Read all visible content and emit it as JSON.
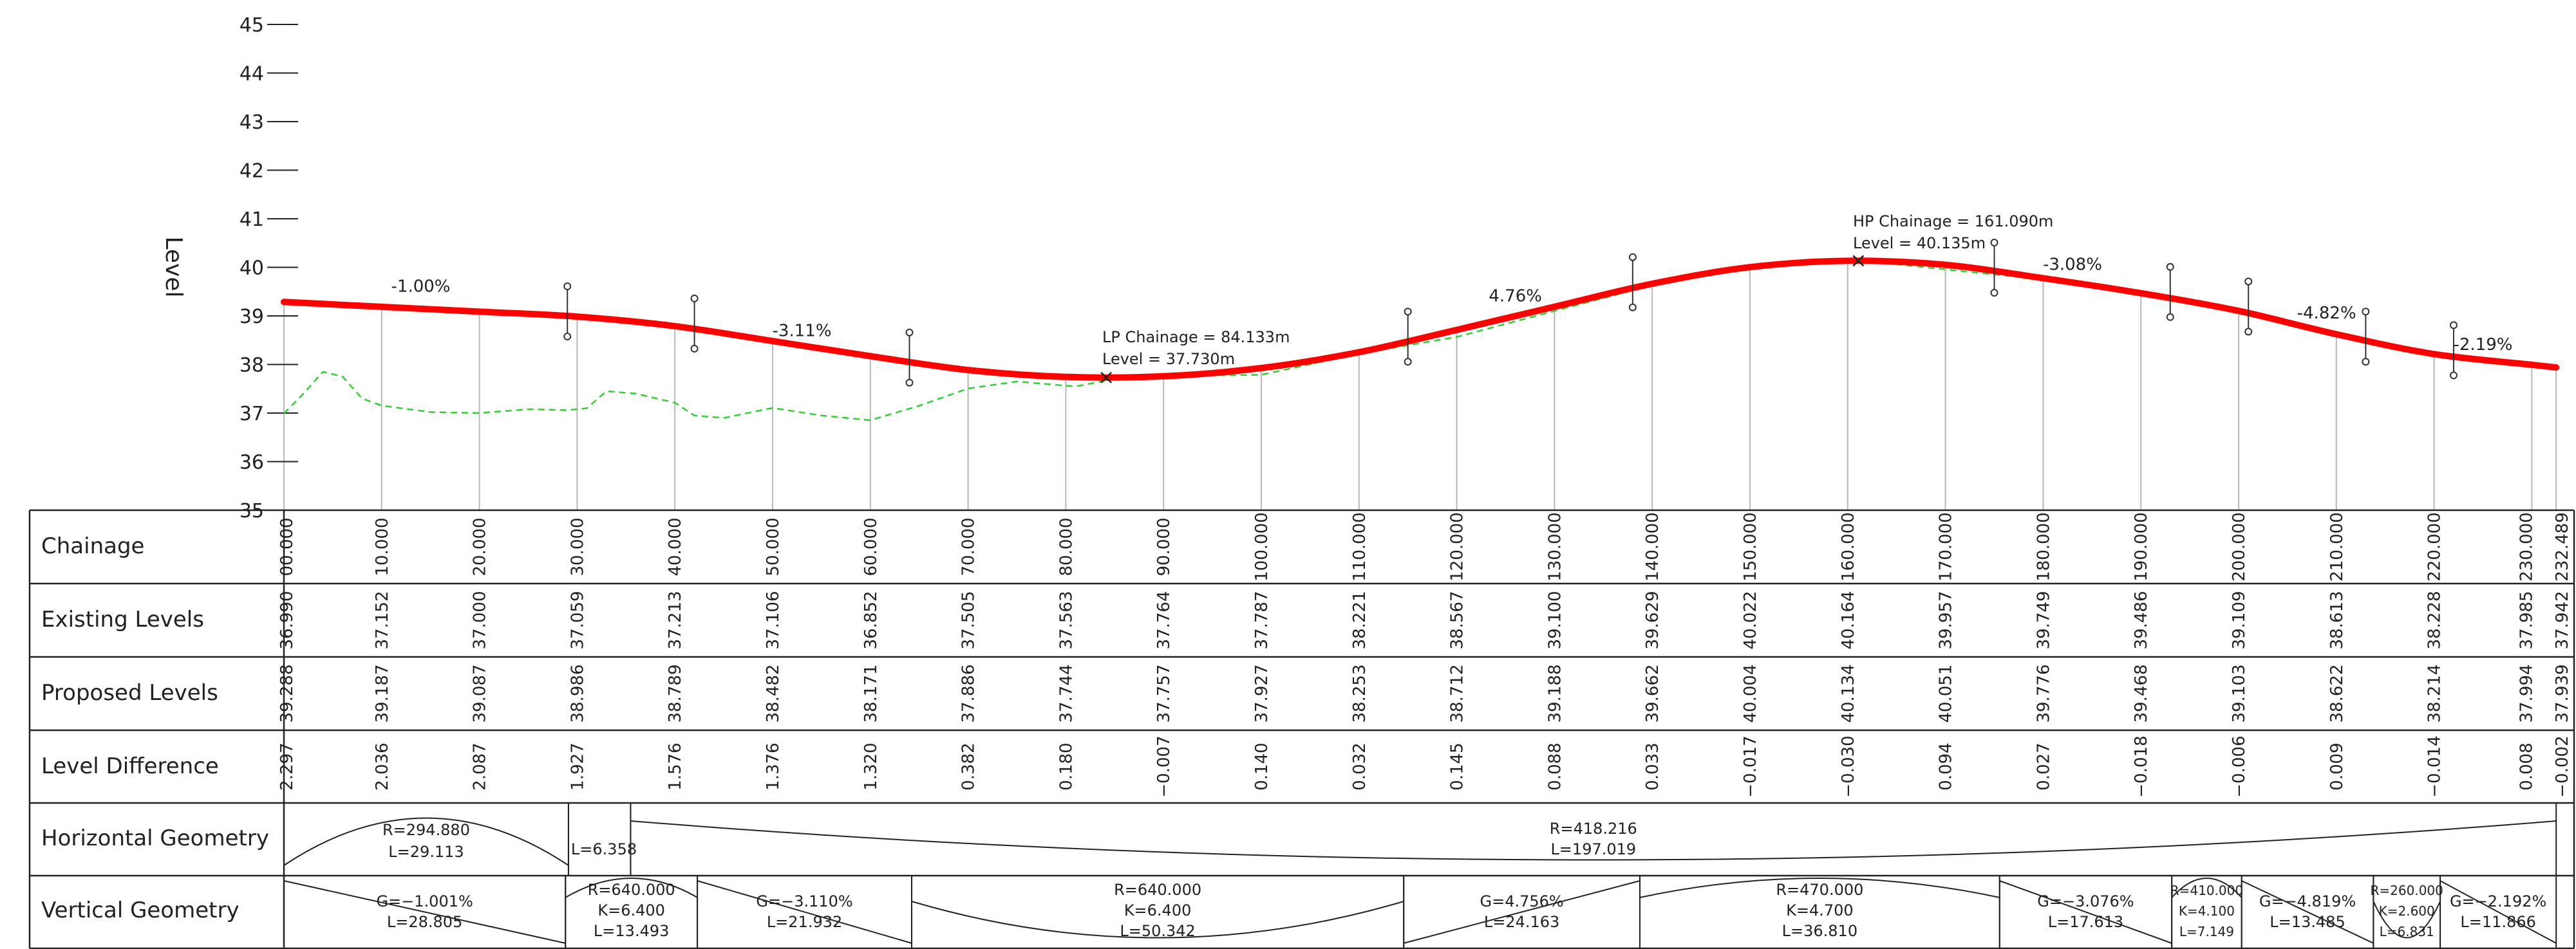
{
  "axis": {
    "label": "Level",
    "ticks": [
      "45",
      "44",
      "43",
      "42",
      "41",
      "40",
      "39",
      "38",
      "37",
      "36",
      "35"
    ],
    "ylim": [
      35,
      45
    ]
  },
  "chainage_range": [
    0,
    232.489
  ],
  "profile": {
    "proposed_color": "#ff0000",
    "existing_color": "#33cc33",
    "proposed": [
      [
        0,
        39.288
      ],
      [
        10,
        39.187
      ],
      [
        20,
        39.087
      ],
      [
        30,
        38.986
      ],
      [
        40,
        38.789
      ],
      [
        50,
        38.482
      ],
      [
        60,
        38.171
      ],
      [
        70,
        37.886
      ],
      [
        80,
        37.744
      ],
      [
        90,
        37.757
      ],
      [
        100,
        37.927
      ],
      [
        110,
        38.253
      ],
      [
        120,
        38.712
      ],
      [
        130,
        39.188
      ],
      [
        140,
        39.662
      ],
      [
        150,
        40.004
      ],
      [
        160,
        40.134
      ],
      [
        170,
        40.051
      ],
      [
        180,
        39.776
      ],
      [
        190,
        39.468
      ],
      [
        200,
        39.103
      ],
      [
        210,
        38.622
      ],
      [
        220,
        38.214
      ],
      [
        230,
        37.994
      ],
      [
        232.489,
        37.939
      ]
    ],
    "existing": [
      [
        0,
        36.99
      ],
      [
        2,
        37.4
      ],
      [
        4,
        37.85
      ],
      [
        6,
        37.75
      ],
      [
        8,
        37.3
      ],
      [
        10,
        37.152
      ],
      [
        15,
        37.02
      ],
      [
        20,
        37.0
      ],
      [
        25,
        37.08
      ],
      [
        29,
        37.06
      ],
      [
        31,
        37.1
      ],
      [
        33,
        37.45
      ],
      [
        36,
        37.4
      ],
      [
        40,
        37.213
      ],
      [
        42,
        36.95
      ],
      [
        45,
        36.9
      ],
      [
        50,
        37.106
      ],
      [
        55,
        36.95
      ],
      [
        60,
        36.852
      ],
      [
        65,
        37.15
      ],
      [
        70,
        37.505
      ],
      [
        75,
        37.65
      ],
      [
        80,
        37.563
      ],
      [
        81,
        37.55
      ],
      [
        85,
        37.7
      ],
      [
        90,
        37.764
      ],
      [
        100,
        37.787
      ],
      [
        110,
        38.221
      ],
      [
        120,
        38.567
      ],
      [
        130,
        39.1
      ],
      [
        140,
        39.629
      ],
      [
        150,
        40.022
      ],
      [
        160,
        40.164
      ],
      [
        170,
        39.957
      ],
      [
        180,
        39.749
      ],
      [
        190,
        39.486
      ],
      [
        200,
        39.109
      ],
      [
        210,
        38.613
      ],
      [
        220,
        38.228
      ],
      [
        230,
        37.985
      ],
      [
        232.489,
        37.942
      ]
    ],
    "grades": [
      {
        "chainage": 14,
        "level": 39.5,
        "text": "-1.00%"
      },
      {
        "chainage": 53,
        "level": 38.58,
        "text": "-3.11%"
      },
      {
        "chainage": 126,
        "level": 39.3,
        "text": "4.76%"
      },
      {
        "chainage": 183,
        "level": 39.95,
        "text": "-3.08%"
      },
      {
        "chainage": 209,
        "level": 38.95,
        "text": "-4.82%"
      },
      {
        "chainage": 225,
        "level": 38.3,
        "text": "-2.19%"
      }
    ],
    "ip_markers": [
      {
        "chainage": 29,
        "level": 39.0
      },
      {
        "chainage": 42,
        "level": 38.75
      },
      {
        "chainage": 64,
        "level": 38.05
      },
      {
        "chainage": 115,
        "level": 38.48
      },
      {
        "chainage": 138,
        "level": 39.6
      },
      {
        "chainage": 175,
        "level": 39.9
      },
      {
        "chainage": 193,
        "level": 39.4
      },
      {
        "chainage": 201,
        "level": 39.1
      },
      {
        "chainage": 213,
        "level": 38.48
      },
      {
        "chainage": 222,
        "level": 38.2
      }
    ],
    "lp": {
      "chainage": 84.133,
      "level": 37.73,
      "line1": "LP Chainage = 84.133m",
      "line2": "Level = 37.730m"
    },
    "hp": {
      "chainage": 161.09,
      "level": 40.135,
      "line1": "HP Chainage = 161.090m",
      "line2": "Level = 40.135m"
    }
  },
  "table": {
    "row_labels": [
      "Chainage",
      "Existing Levels",
      "Proposed Levels",
      "Level Difference",
      "Horizontal Geometry",
      "Vertical Geometry"
    ],
    "columns": [
      {
        "ch": 0,
        "chainage": "00.000",
        "existing": "36.990",
        "proposed": "39.288",
        "diff": "2.297"
      },
      {
        "ch": 10,
        "chainage": "10.000",
        "existing": "37.152",
        "proposed": "39.187",
        "diff": "2.036"
      },
      {
        "ch": 20,
        "chainage": "20.000",
        "existing": "37.000",
        "proposed": "39.087",
        "diff": "2.087"
      },
      {
        "ch": 30,
        "chainage": "30.000",
        "existing": "37.059",
        "proposed": "38.986",
        "diff": "1.927"
      },
      {
        "ch": 40,
        "chainage": "40.000",
        "existing": "37.213",
        "proposed": "38.789",
        "diff": "1.576"
      },
      {
        "ch": 50,
        "chainage": "50.000",
        "existing": "37.106",
        "proposed": "38.482",
        "diff": "1.376"
      },
      {
        "ch": 60,
        "chainage": "60.000",
        "existing": "36.852",
        "proposed": "38.171",
        "diff": "1.320"
      },
      {
        "ch": 70,
        "chainage": "70.000",
        "existing": "37.505",
        "proposed": "37.886",
        "diff": "0.382"
      },
      {
        "ch": 80,
        "chainage": "80.000",
        "existing": "37.563",
        "proposed": "37.744",
        "diff": "0.180"
      },
      {
        "ch": 90,
        "chainage": "90.000",
        "existing": "37.764",
        "proposed": "37.757",
        "diff": "−0.007"
      },
      {
        "ch": 100,
        "chainage": "100.000",
        "existing": "37.787",
        "proposed": "37.927",
        "diff": "0.140"
      },
      {
        "ch": 110,
        "chainage": "110.000",
        "existing": "38.221",
        "proposed": "38.253",
        "diff": "0.032"
      },
      {
        "ch": 120,
        "chainage": "120.000",
        "existing": "38.567",
        "proposed": "38.712",
        "diff": "0.145"
      },
      {
        "ch": 130,
        "chainage": "130.000",
        "existing": "39.100",
        "proposed": "39.188",
        "diff": "0.088"
      },
      {
        "ch": 140,
        "chainage": "140.000",
        "existing": "39.629",
        "proposed": "39.662",
        "diff": "0.033"
      },
      {
        "ch": 150,
        "chainage": "150.000",
        "existing": "40.022",
        "proposed": "40.004",
        "diff": "−0.017"
      },
      {
        "ch": 160,
        "chainage": "160.000",
        "existing": "40.164",
        "proposed": "40.134",
        "diff": "−0.030"
      },
      {
        "ch": 170,
        "chainage": "170.000",
        "existing": "39.957",
        "proposed": "40.051",
        "diff": "0.094"
      },
      {
        "ch": 180,
        "chainage": "180.000",
        "existing": "39.749",
        "proposed": "39.776",
        "diff": "0.027"
      },
      {
        "ch": 190,
        "chainage": "190.000",
        "existing": "39.486",
        "proposed": "39.468",
        "diff": "−0.018"
      },
      {
        "ch": 200,
        "chainage": "200.000",
        "existing": "39.109",
        "proposed": "39.103",
        "diff": "−0.006"
      },
      {
        "ch": 210,
        "chainage": "210.000",
        "existing": "38.613",
        "proposed": "38.622",
        "diff": "0.009"
      },
      {
        "ch": 220,
        "chainage": "220.000",
        "existing": "38.228",
        "proposed": "38.214",
        "diff": "−0.014"
      },
      {
        "ch": 230,
        "chainage": "230.000",
        "existing": "37.985",
        "proposed": "37.994",
        "diff": "0.008"
      },
      {
        "ch": 232.489,
        "chainage": "232.489",
        "existing": "37.942",
        "proposed": "37.939",
        "diff": "−0.002"
      }
    ],
    "horizontal_geometry": [
      {
        "start": 0,
        "end": 29.113,
        "type": "curve",
        "line1": "R=294.880",
        "line2": "L=29.113"
      },
      {
        "start": 29.113,
        "end": 35.471,
        "type": "straight",
        "line1": "L=6.358",
        "line2": ""
      },
      {
        "start": 35.471,
        "end": 232.489,
        "type": "curve",
        "line1": "R=418.216",
        "line2": "L=197.019"
      }
    ],
    "vertical_geometry": [
      {
        "start": 0,
        "end": 28.805,
        "type": "grade",
        "dir": "down",
        "line1": "G=−1.001%",
        "line2": "L=28.805"
      },
      {
        "start": 28.805,
        "end": 42.298,
        "type": "vc",
        "dir": "crest",
        "line1": "R=640.000",
        "line2": "K=6.400",
        "line3": "L=13.493"
      },
      {
        "start": 42.298,
        "end": 64.23,
        "type": "grade",
        "dir": "down",
        "line1": "G=−3.110%",
        "line2": "L=21.932"
      },
      {
        "start": 64.23,
        "end": 114.572,
        "type": "vc",
        "dir": "sag",
        "line1": "R=640.000",
        "line2": "K=6.400",
        "line3": "L=50.342"
      },
      {
        "start": 114.572,
        "end": 138.735,
        "type": "grade",
        "dir": "up",
        "line1": "G=4.756%",
        "line2": "L=24.163"
      },
      {
        "start": 138.735,
        "end": 175.545,
        "type": "vc",
        "dir": "crest",
        "line1": "R=470.000",
        "line2": "K=4.700",
        "line3": "L=36.810"
      },
      {
        "start": 175.545,
        "end": 193.158,
        "type": "grade",
        "dir": "down",
        "line1": "G=−3.076%",
        "line2": "L=17.613"
      },
      {
        "start": 193.158,
        "end": 200.307,
        "type": "vc",
        "dir": "crest",
        "line1": "R=410.000",
        "line2": "K=4.100",
        "line3": "L=7.149"
      },
      {
        "start": 200.307,
        "end": 213.792,
        "type": "grade",
        "dir": "down",
        "line1": "G=−4.819%",
        "line2": "L=13.485"
      },
      {
        "start": 213.792,
        "end": 220.623,
        "type": "vc",
        "dir": "sag",
        "line1": "R=260.000",
        "line2": "K=2.600",
        "line3": "L=6.831"
      },
      {
        "start": 220.623,
        "end": 232.489,
        "type": "grade",
        "dir": "down",
        "line1": "G=−2.192%",
        "line2": "L=11.866"
      }
    ]
  }
}
